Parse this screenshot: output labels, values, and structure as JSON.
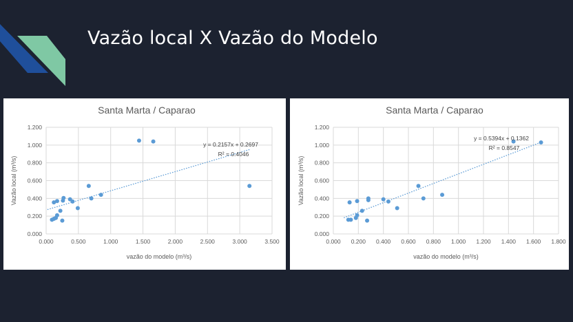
{
  "slide": {
    "title": "Vazão local X Vazão do Modelo",
    "colors": {
      "background": "#1c2230",
      "deco_blue": "#1f4f9b",
      "deco_green": "#7fc8a4",
      "marker": "#5b9bd5"
    }
  },
  "chart_data": [
    {
      "type": "scatter",
      "title": "Santa Marta / Caparao",
      "xlabel": "vazão do modelo (m³/s)",
      "ylabel": "Vazão local (m³/s)",
      "xlim": [
        0,
        3.5
      ],
      "ylim": [
        0,
        1.2
      ],
      "xticks": [
        "0.000",
        "0.500",
        "1.000",
        "1.500",
        "2.000",
        "2.500",
        "3.000",
        "3.500"
      ],
      "yticks": [
        "0.000",
        "0.200",
        "0.400",
        "0.600",
        "0.800",
        "1.000",
        "1.200"
      ],
      "grid": true,
      "trendline": {
        "slope": 0.2157,
        "intercept": 0.2697,
        "equation": "y = 0.2157x + 0.2697",
        "r2": "R² = 0.4046"
      },
      "points": [
        [
          0.09,
          0.16
        ],
        [
          0.12,
          0.17
        ],
        [
          0.15,
          0.18
        ],
        [
          0.17,
          0.21
        ],
        [
          0.25,
          0.15
        ],
        [
          0.12,
          0.355
        ],
        [
          0.17,
          0.37
        ],
        [
          0.22,
          0.26
        ],
        [
          0.26,
          0.375
        ],
        [
          0.27,
          0.405
        ],
        [
          0.37,
          0.39
        ],
        [
          0.41,
          0.365
        ],
        [
          0.49,
          0.29
        ],
        [
          0.66,
          0.54
        ],
        [
          0.7,
          0.4
        ],
        [
          0.85,
          0.44
        ],
        [
          1.44,
          1.05
        ],
        [
          1.66,
          1.04
        ],
        [
          3.15,
          0.54
        ]
      ]
    },
    {
      "type": "scatter",
      "title": "Santa Marta / Caparao",
      "xlabel": "vazão do modelo (m³/s)",
      "ylabel": "Vazão local (m³/s)",
      "xlim": [
        0,
        1.8
      ],
      "ylim": [
        0,
        1.2
      ],
      "xticks": [
        "0.000",
        "0.200",
        "0.400",
        "0.600",
        "0.800",
        "1.000",
        "1.200",
        "1.400",
        "1.600",
        "1.800"
      ],
      "yticks": [
        "0.000",
        "0.200",
        "0.400",
        "0.600",
        "0.800",
        "1.000",
        "1.200"
      ],
      "grid": true,
      "trendline": {
        "slope": 0.5394,
        "intercept": 0.1362,
        "equation": "y = 0.5394x + 0.1362",
        "r2": "R² = 0.8547"
      },
      "points": [
        [
          0.12,
          0.16
        ],
        [
          0.14,
          0.16
        ],
        [
          0.18,
          0.18
        ],
        [
          0.19,
          0.21
        ],
        [
          0.27,
          0.15
        ],
        [
          0.13,
          0.355
        ],
        [
          0.19,
          0.37
        ],
        [
          0.23,
          0.26
        ],
        [
          0.28,
          0.38
        ],
        [
          0.28,
          0.4
        ],
        [
          0.4,
          0.39
        ],
        [
          0.44,
          0.365
        ],
        [
          0.51,
          0.29
        ],
        [
          0.68,
          0.54
        ],
        [
          0.72,
          0.4
        ],
        [
          0.87,
          0.44
        ],
        [
          1.44,
          1.04
        ],
        [
          1.66,
          1.03
        ]
      ]
    }
  ]
}
